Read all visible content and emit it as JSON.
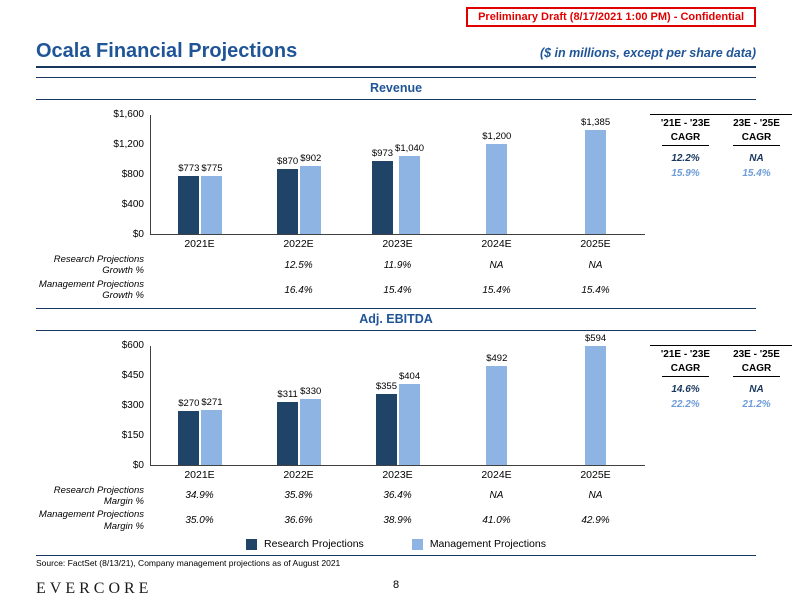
{
  "stamp": "Preliminary Draft (8/17/2021 1:00 PM) - Confidential",
  "header": {
    "title": "Ocala Financial Projections",
    "subtitle": "($ in millions, except per share data)"
  },
  "colors": {
    "research": "#1F4467",
    "management": "#8DB4E2",
    "cagr_research": "#17375E",
    "cagr_management": "#6E9CD9",
    "title_blue": "#1F5597",
    "stamp_red": "#E00000"
  },
  "legend": [
    {
      "key": "research",
      "label": "Research Projections"
    },
    {
      "key": "management",
      "label": "Management Projections"
    }
  ],
  "footer": {
    "source": "Source: FactSet (8/13/21), Company management projections as of August 2021",
    "logo": "EVERCORE",
    "page_number": "8"
  },
  "chart_data": [
    {
      "id": "revenue",
      "type": "bar",
      "title": "Revenue",
      "categories": [
        "2021E",
        "2022E",
        "2023E",
        "2024E",
        "2025E"
      ],
      "series": [
        {
          "name": "Research Projections",
          "color_key": "research",
          "values": [
            773,
            870,
            973,
            null,
            null
          ],
          "labels": [
            "$773",
            "$870",
            "$973",
            null,
            null
          ]
        },
        {
          "name": "Management Projections",
          "color_key": "management",
          "values": [
            775,
            902,
            1040,
            1200,
            1385
          ],
          "labels": [
            "$775",
            "$902",
            "$1,040",
            "$1,200",
            "$1,385"
          ]
        }
      ],
      "ylim": [
        0,
        1600
      ],
      "yticks": [
        {
          "value": 0,
          "label": "$0"
        },
        {
          "value": 400,
          "label": "$400"
        },
        {
          "value": 800,
          "label": "$800"
        },
        {
          "value": 1200,
          "label": "$1,200"
        },
        {
          "value": 1600,
          "label": "$1,600"
        }
      ],
      "cagr_table": {
        "columns": [
          "'21E - '23E",
          "23E - '25E"
        ],
        "subheader": "CAGR",
        "rows": [
          {
            "color_key": "cagr_research",
            "values": [
              "12.2%",
              "NA"
            ]
          },
          {
            "color_key": "cagr_management",
            "values": [
              "15.9%",
              "15.4%"
            ]
          }
        ]
      },
      "stat_rows": [
        {
          "label_line1": "Research Projections",
          "label_line2": "Growth %",
          "values": [
            "",
            "12.5%",
            "11.9%",
            "NA",
            "NA"
          ]
        },
        {
          "label_line1": "Management Projections",
          "label_line2": "Growth %",
          "values": [
            "",
            "16.4%",
            "15.4%",
            "15.4%",
            "15.4%"
          ]
        }
      ]
    },
    {
      "id": "ebitda",
      "type": "bar",
      "title": "Adj. EBITDA",
      "categories": [
        "2021E",
        "2022E",
        "2023E",
        "2024E",
        "2025E"
      ],
      "series": [
        {
          "name": "Research Projections",
          "color_key": "research",
          "values": [
            270,
            311,
            355,
            null,
            null
          ],
          "labels": [
            "$270",
            "$311",
            "$355",
            null,
            null
          ]
        },
        {
          "name": "Management Projections",
          "color_key": "management",
          "values": [
            271,
            330,
            404,
            492,
            594
          ],
          "labels": [
            "$271",
            "$330",
            "$404",
            "$492",
            "$594"
          ]
        }
      ],
      "ylim": [
        0,
        600
      ],
      "yticks": [
        {
          "value": 0,
          "label": "$0"
        },
        {
          "value": 150,
          "label": "$150"
        },
        {
          "value": 300,
          "label": "$300"
        },
        {
          "value": 450,
          "label": "$450"
        },
        {
          "value": 600,
          "label": "$600"
        }
      ],
      "cagr_table": {
        "columns": [
          "'21E - '23E",
          "23E - '25E"
        ],
        "subheader": "CAGR",
        "rows": [
          {
            "color_key": "cagr_research",
            "values": [
              "14.6%",
              "NA"
            ]
          },
          {
            "color_key": "cagr_management",
            "values": [
              "22.2%",
              "21.2%"
            ]
          }
        ]
      },
      "stat_rows": [
        {
          "label_line1": "Research Projections",
          "label_line2": "Margin %",
          "values": [
            "34.9%",
            "35.8%",
            "36.4%",
            "NA",
            "NA"
          ]
        },
        {
          "label_line1": "Management Projections",
          "label_line2": "Margin %",
          "values": [
            "35.0%",
            "36.6%",
            "38.9%",
            "41.0%",
            "42.9%"
          ]
        }
      ]
    }
  ]
}
